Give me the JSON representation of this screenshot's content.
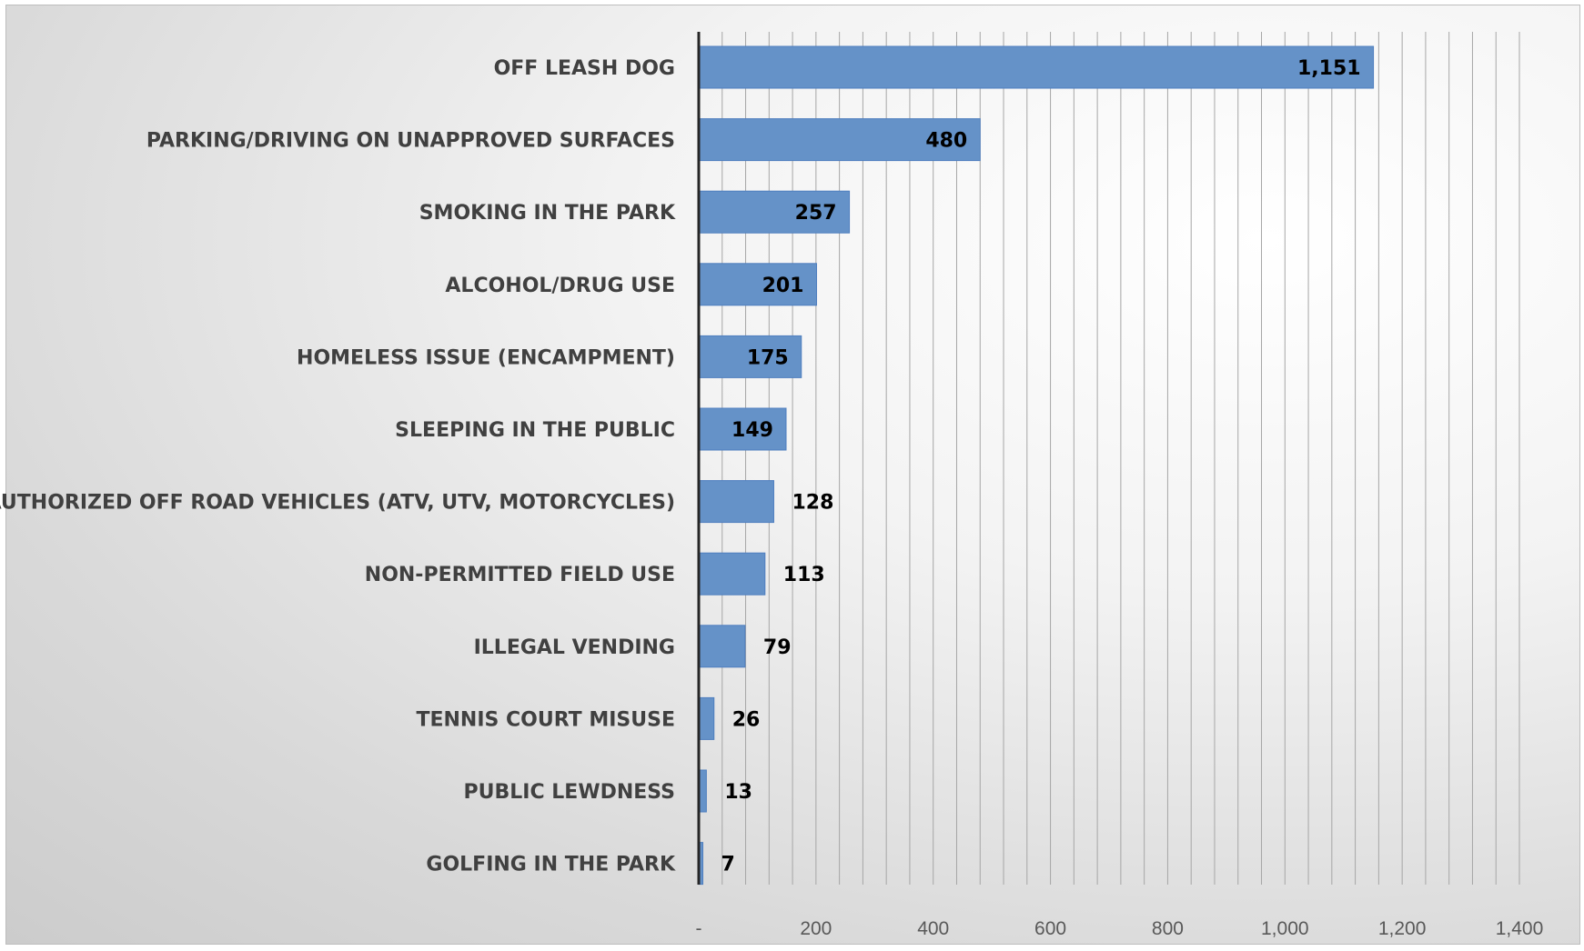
{
  "chart_data": {
    "type": "bar",
    "orientation": "horizontal",
    "categories": [
      "OFF LEASH DOG",
      "PARKING/DRIVING ON UNAPPROVED SURFACES",
      "SMOKING IN THE PARK",
      "ALCOHOL/DRUG USE",
      "HOMELESS ISSUE (ENCAMPMENT)",
      "SLEEPING IN THE PUBLIC",
      "UNAUTHORIZED OFF ROAD VEHICLES (ATV, UTV, MOTORCYCLES)",
      "NON-PERMITTED FIELD USE",
      "ILLEGAL VENDING",
      "TENNIS COURT MISUSE",
      "PUBLIC LEWDNESS",
      "GOLFING IN THE PARK"
    ],
    "values": [
      1151,
      480,
      257,
      201,
      175,
      149,
      128,
      113,
      79,
      26,
      13,
      7
    ],
    "data_labels": [
      "1,151",
      "480",
      "257",
      "201",
      "175",
      "149",
      "128",
      "113",
      "79",
      "26",
      "13",
      "7"
    ],
    "xlim": [
      0,
      1400
    ],
    "x_ticks": [
      0,
      200,
      400,
      600,
      800,
      1000,
      1200,
      1400
    ],
    "x_tick_labels": [
      "-",
      "200",
      "400",
      "600",
      "800",
      "1,000",
      "1,200",
      "1,400"
    ],
    "minor_grid_step": 40,
    "grid": true,
    "bar_color": "#6592c8",
    "bar_border_color": "#4f7fbf",
    "title": "",
    "xlabel": "",
    "ylabel": ""
  }
}
